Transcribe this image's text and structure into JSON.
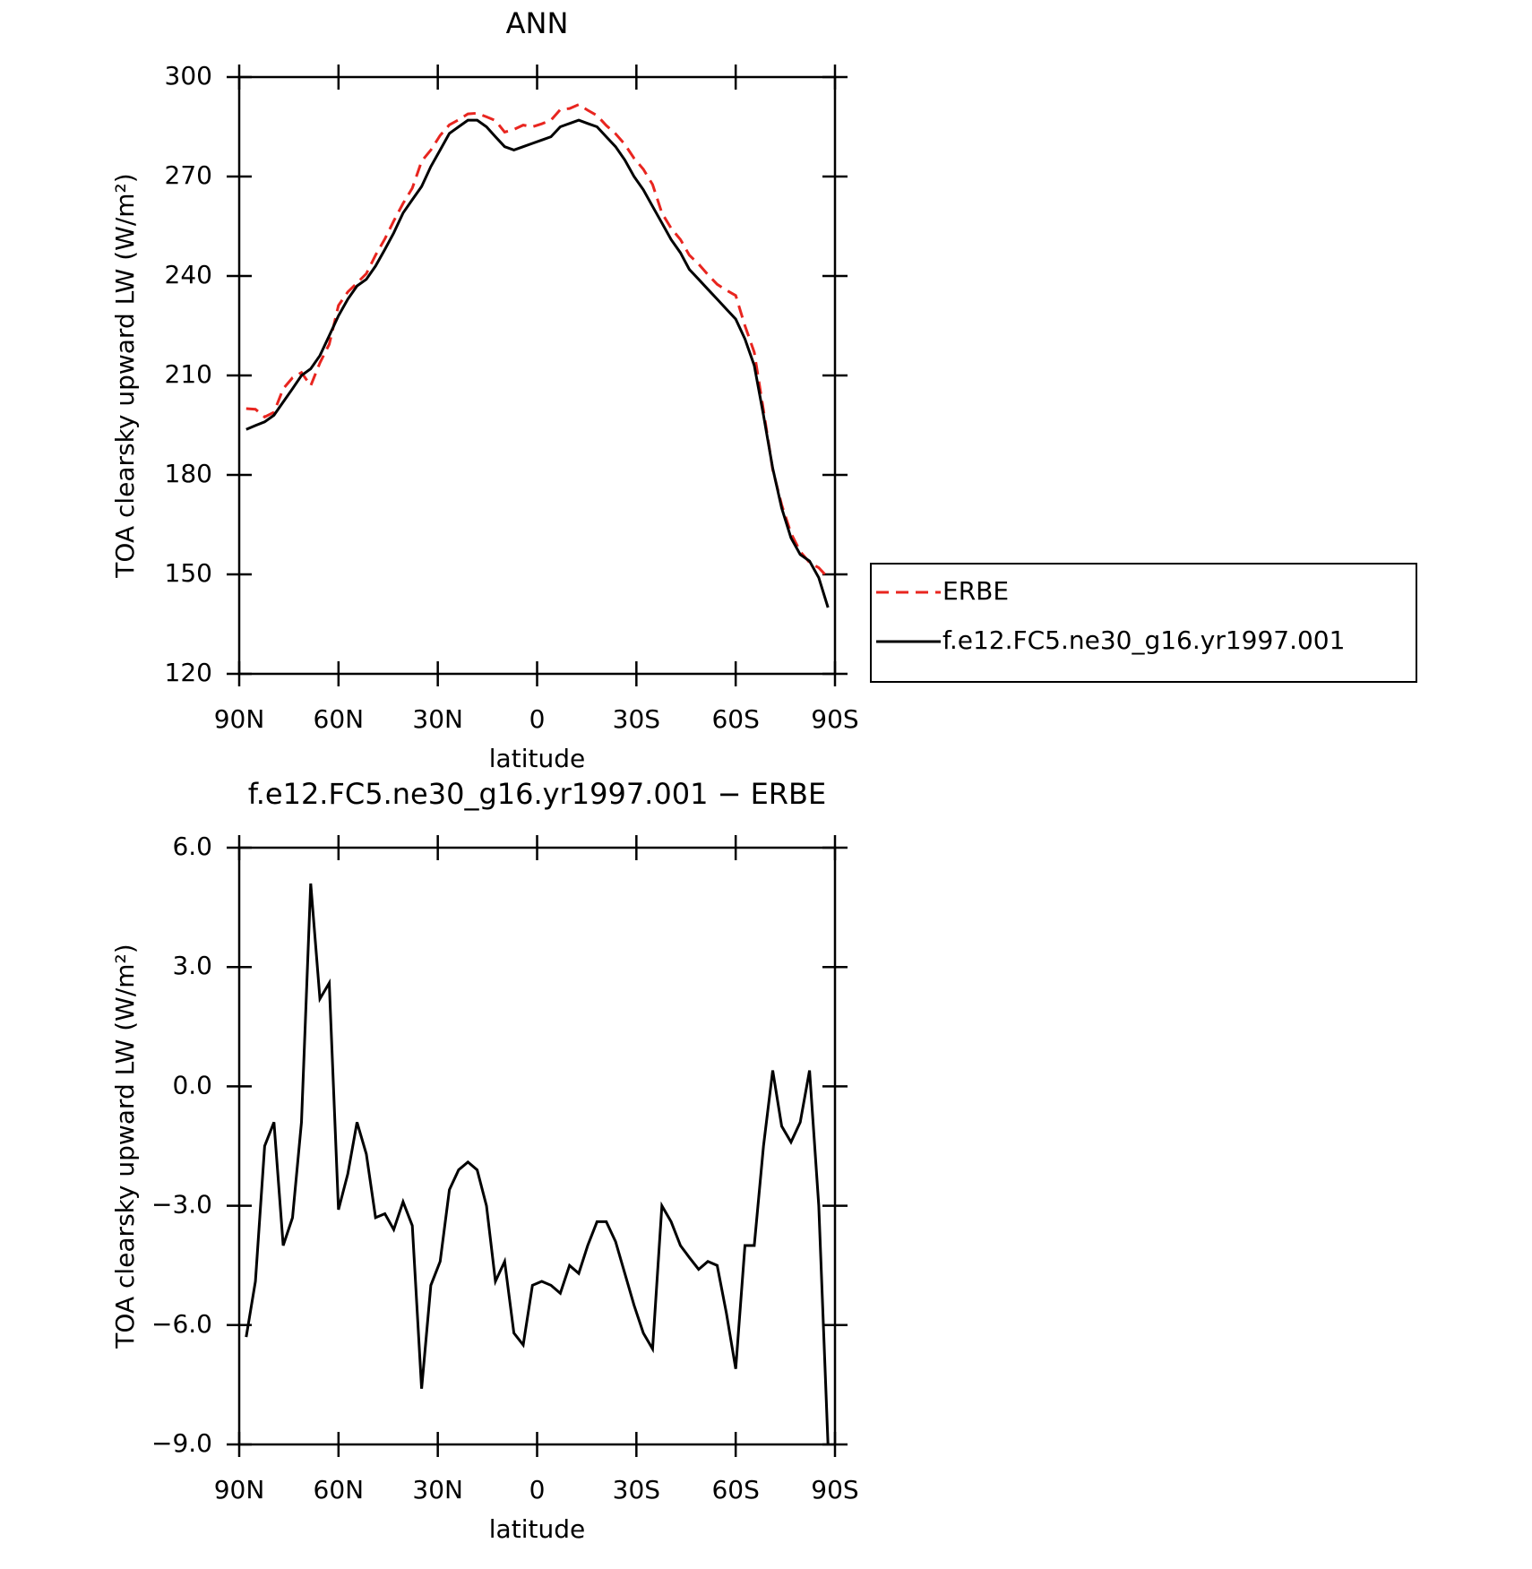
{
  "chart_data": [
    {
      "type": "line",
      "title": "ANN",
      "xlabel": "latitude",
      "ylabel": "TOA clearsky upward LW (W/m²)",
      "x": [
        87.9,
        85.1,
        82.3,
        79.5,
        76.7,
        73.9,
        71.2,
        68.4,
        65.6,
        62.8,
        60.0,
        57.2,
        54.4,
        51.6,
        48.8,
        46.0,
        43.3,
        40.5,
        37.7,
        34.9,
        32.1,
        29.3,
        26.5,
        23.7,
        20.9,
        18.1,
        15.3,
        12.6,
        9.8,
        7.0,
        4.2,
        1.4,
        -1.4,
        -4.2,
        -7.0,
        -9.8,
        -12.6,
        -15.3,
        -18.1,
        -20.9,
        -23.7,
        -26.5,
        -29.3,
        -32.1,
        -34.9,
        -37.7,
        -40.5,
        -43.3,
        -46.0,
        -48.8,
        -51.6,
        -54.4,
        -57.2,
        -60.0,
        -62.8,
        -65.6,
        -68.4,
        -71.2,
        -73.9,
        -76.7,
        -79.5,
        -82.3,
        -85.1,
        -87.9
      ],
      "series": [
        {
          "name": "ERBE",
          "color": "#e8251f",
          "style": "dashed",
          "values": [
            200.0,
            199.8,
            197.5,
            198.9,
            206,
            209.3,
            210.9,
            206.9,
            213.8,
            219.4,
            231.1,
            235.2,
            237.9,
            240.7,
            246.3,
            251.2,
            256.6,
            261.9,
            266.5,
            274.6,
            278,
            282.4,
            285.6,
            287.1,
            288.9,
            289.1,
            288,
            286.9,
            283.4,
            284.2,
            285.5,
            285,
            285.9,
            287,
            290.2,
            290.5,
            291.7,
            290,
            288.4,
            285.4,
            282.9,
            279.7,
            275.5,
            272.2,
            267.6,
            259,
            254.4,
            251,
            246.3,
            243.6,
            240.4,
            237.5,
            235.7,
            234.1,
            225,
            217,
            199.5,
            181.6,
            171,
            162.4,
            156.9,
            153.6,
            152,
            149
          ]
        },
        {
          "name": "f.e12.FC5.ne30_g16.yr1997.001",
          "color": "#000000",
          "style": "solid",
          "values": [
            193.7,
            194.9,
            196,
            198,
            202,
            206,
            210,
            212,
            216,
            222,
            228,
            233,
            237,
            239,
            243,
            248,
            253,
            259,
            263,
            267,
            273,
            278,
            283,
            285,
            287,
            287,
            285,
            282,
            279,
            278,
            279,
            280,
            281,
            282,
            285,
            286,
            287,
            286,
            285,
            282,
            279,
            275,
            270,
            266,
            261,
            256,
            251,
            247,
            242,
            239,
            236,
            233,
            230,
            227,
            221,
            213,
            198,
            182,
            170,
            161,
            156,
            154,
            149,
            140
          ]
        }
      ],
      "xlim": [
        90,
        -90
      ],
      "xticks": [
        {
          "value": 90,
          "label": "90N"
        },
        {
          "value": 60,
          "label": "60N"
        },
        {
          "value": 30,
          "label": "30N"
        },
        0,
        {
          "value": -30,
          "label": "30S"
        },
        {
          "value": -60,
          "label": "60S"
        },
        {
          "value": -90,
          "label": "90S"
        }
      ],
      "ylim": [
        120,
        300
      ],
      "yticks": [
        120,
        150,
        180,
        210,
        240,
        270,
        300
      ],
      "grid": false
    },
    {
      "type": "line",
      "title": "f.e12.FC5.ne30_g16.yr1997.001 − ERBE",
      "xlabel": "latitude",
      "ylabel": "TOA clearsky upward LW (W/m²)",
      "x": [
        87.9,
        85.1,
        82.3,
        79.5,
        76.7,
        73.9,
        71.2,
        68.4,
        65.6,
        62.8,
        60.0,
        57.2,
        54.4,
        51.6,
        48.8,
        46.0,
        43.3,
        40.5,
        37.7,
        34.9,
        32.1,
        29.3,
        26.5,
        23.7,
        20.9,
        18.1,
        15.3,
        12.6,
        9.8,
        7.0,
        4.2,
        1.4,
        -1.4,
        -4.2,
        -7.0,
        -9.8,
        -12.6,
        -15.3,
        -18.1,
        -20.9,
        -23.7,
        -26.5,
        -29.3,
        -32.1,
        -34.9,
        -37.7,
        -40.5,
        -43.3,
        -46.0,
        -48.8,
        -51.6,
        -54.4,
        -57.2,
        -60.0,
        -62.8,
        -65.6,
        -68.4,
        -71.2,
        -73.9,
        -76.7,
        -79.5,
        -82.3,
        -85.1,
        -87.9
      ],
      "color": "#000000",
      "values": [
        -6.3,
        -4.9,
        -1.5,
        -0.9,
        -4.0,
        -3.3,
        -0.9,
        5.1,
        2.2,
        2.6,
        -3.1,
        -2.2,
        -0.9,
        -1.7,
        -3.3,
        -3.2,
        -3.6,
        -2.9,
        -3.5,
        -7.6,
        -5.0,
        -4.4,
        -2.6,
        -2.1,
        -1.9,
        -2.1,
        -3.0,
        -4.9,
        -4.4,
        -6.2,
        -6.5,
        -5.0,
        -4.9,
        -5.0,
        -5.2,
        -4.5,
        -4.7,
        -4.0,
        -3.4,
        -3.4,
        -3.9,
        -4.7,
        -5.5,
        -6.2,
        -6.6,
        -3.0,
        -3.4,
        -4.0,
        -4.3,
        -4.6,
        -4.4,
        -4.5,
        -5.7,
        -7.1,
        -4.0,
        -4.0,
        -1.5,
        0.4,
        -1.0,
        -1.4,
        -0.9,
        0.4,
        -3.0,
        -9.0
      ],
      "xlim": [
        90,
        -90
      ],
      "xticks": [
        {
          "value": 90,
          "label": "90N"
        },
        {
          "value": 60,
          "label": "60N"
        },
        {
          "value": 30,
          "label": "30N"
        },
        0,
        {
          "value": -30,
          "label": "30S"
        },
        {
          "value": -60,
          "label": "60S"
        },
        {
          "value": -90,
          "label": "90S"
        }
      ],
      "ylim": [
        -9,
        6
      ],
      "yticks": [
        {
          "value": -9,
          "label": "−9.0"
        },
        {
          "value": -6,
          "label": "−6.0"
        },
        {
          "value": -3,
          "label": "−3.0"
        },
        {
          "value": 0,
          "label": "0.0"
        },
        {
          "value": 3,
          "label": "3.0"
        },
        {
          "value": 6,
          "label": "6.0"
        }
      ],
      "grid": false
    }
  ]
}
